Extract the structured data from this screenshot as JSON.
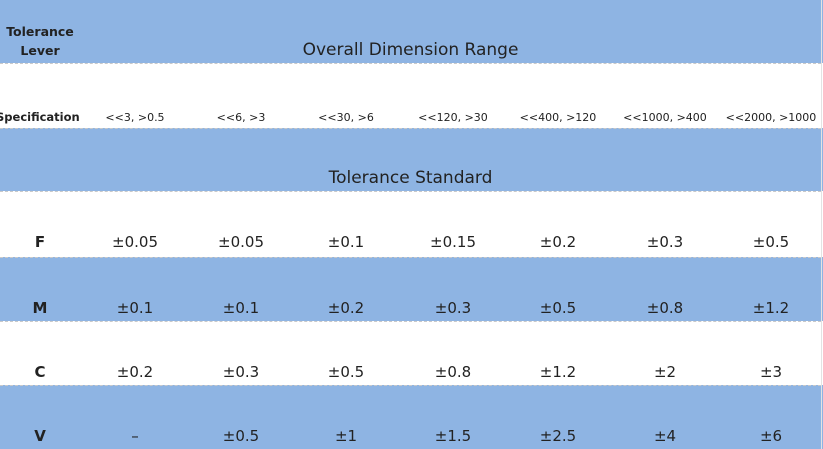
{
  "header": {
    "tolerance_label_line1": "Tolerance",
    "tolerance_label_line2": "Lever",
    "title": "Overall Dimension Range"
  },
  "specification": {
    "label": "Specification",
    "ranges": [
      "<<3, >0.5",
      "<<6, >3",
      "<<30, >6",
      "<<120, >30",
      "<<400, >120",
      "<<1000, >400",
      "<<2000, >1000"
    ]
  },
  "standard_title": "Tolerance Standard",
  "levels": [
    {
      "name": "F",
      "values": [
        "±0.05",
        "±0.05",
        "±0.1",
        "±0.15",
        "±0.2",
        "±0.3",
        "±0.5"
      ]
    },
    {
      "name": "M",
      "values": [
        "±0.1",
        "±0.1",
        "±0.2",
        "±0.3",
        "±0.5",
        "±0.8",
        "±1.2"
      ]
    },
    {
      "name": "C",
      "values": [
        "±0.2",
        "±0.3",
        "±0.5",
        "±0.8",
        "±1.2",
        "±2",
        "±3"
      ]
    },
    {
      "name": "V",
      "values": [
        "–",
        "±0.5",
        "±1",
        "±1.5",
        "±2.5",
        "±4",
        "±6"
      ]
    }
  ],
  "colors": {
    "band_blue": "#8eb4e3",
    "band_white": "#ffffff",
    "text": "#222222",
    "divider": "#c9c9c9"
  }
}
